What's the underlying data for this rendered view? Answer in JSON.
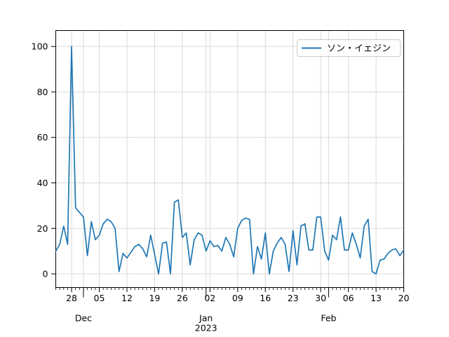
{
  "chart_data": {
    "type": "line",
    "title": "",
    "xlabel": "",
    "ylabel": "",
    "grid": true,
    "legend_position": "upper right",
    "ylim": [
      -6,
      107
    ],
    "yticks": [
      0,
      20,
      40,
      60,
      80,
      100
    ],
    "xticks": [
      {
        "label": "28",
        "index": 4
      },
      {
        "label": "05",
        "index": 11
      },
      {
        "label": "12",
        "index": 18
      },
      {
        "label": "19",
        "index": 25
      },
      {
        "label": "26",
        "index": 32
      },
      {
        "label": "02",
        "index": 39
      },
      {
        "label": "09",
        "index": 46
      },
      {
        "label": "16",
        "index": 53
      },
      {
        "label": "23",
        "index": 60
      },
      {
        "label": "30",
        "index": 67
      },
      {
        "label": "06",
        "index": 74
      },
      {
        "label": "13",
        "index": 81
      },
      {
        "label": "20",
        "index": 88
      }
    ],
    "month_ticks": [
      {
        "label": "Dec",
        "sublabel": "",
        "index": 7
      },
      {
        "label": "Jan",
        "sublabel": "2023",
        "index": 38
      },
      {
        "label": "Feb",
        "sublabel": "",
        "index": 69
      }
    ],
    "dates": [
      "2022-11-24",
      "2022-11-25",
      "2022-11-26",
      "2022-11-27",
      "2022-11-28",
      "2022-11-29",
      "2022-11-30",
      "2022-12-01",
      "2022-12-02",
      "2022-12-03",
      "2022-12-04",
      "2022-12-05",
      "2022-12-06",
      "2022-12-07",
      "2022-12-08",
      "2022-12-09",
      "2022-12-10",
      "2022-12-11",
      "2022-12-12",
      "2022-12-13",
      "2022-12-14",
      "2022-12-15",
      "2022-12-16",
      "2022-12-17",
      "2022-12-18",
      "2022-12-19",
      "2022-12-20",
      "2022-12-21",
      "2022-12-22",
      "2022-12-23",
      "2022-12-24",
      "2022-12-25",
      "2022-12-26",
      "2022-12-27",
      "2022-12-28",
      "2022-12-29",
      "2022-12-30",
      "2022-12-31",
      "2023-01-01",
      "2023-01-02",
      "2023-01-03",
      "2023-01-04",
      "2023-01-05",
      "2023-01-06",
      "2023-01-07",
      "2023-01-08",
      "2023-01-09",
      "2023-01-10",
      "2023-01-11",
      "2023-01-12",
      "2023-01-13",
      "2023-01-14",
      "2023-01-15",
      "2023-01-16",
      "2023-01-17",
      "2023-01-18",
      "2023-01-19",
      "2023-01-20",
      "2023-01-21",
      "2023-01-22",
      "2023-01-23",
      "2023-01-24",
      "2023-01-25",
      "2023-01-26",
      "2023-01-27",
      "2023-01-28",
      "2023-01-29",
      "2023-01-30",
      "2023-01-31",
      "2023-02-01",
      "2023-02-02",
      "2023-02-03",
      "2023-02-04",
      "2023-02-05",
      "2023-02-06",
      "2023-02-07",
      "2023-02-08",
      "2023-02-09",
      "2023-02-10",
      "2023-02-11",
      "2023-02-12",
      "2023-02-13",
      "2023-02-14",
      "2023-02-15",
      "2023-02-16",
      "2023-02-17",
      "2023-02-18",
      "2023-02-19",
      "2023-02-20"
    ],
    "series": [
      {
        "name": "ソン・イェジン",
        "color": "#1f77b4",
        "values": [
          10,
          13,
          21,
          13,
          100,
          29,
          27,
          25,
          8,
          23,
          15,
          17,
          22,
          24,
          23,
          20,
          1,
          9,
          7,
          9.5,
          12,
          13,
          11,
          7.5,
          17,
          8.5,
          0,
          13.5,
          14,
          0,
          31.5,
          32.5,
          16,
          18,
          4,
          15,
          18,
          17,
          10,
          14.5,
          12,
          12.5,
          10,
          16,
          13,
          7.5,
          20,
          23.5,
          24.5,
          24,
          0,
          12,
          6.5,
          18,
          0,
          10,
          13.5,
          16,
          13,
          1,
          19,
          4,
          21,
          22,
          10.5,
          10.5,
          25,
          25,
          10,
          6,
          17,
          15,
          25,
          10.5,
          10.5,
          18,
          13,
          7,
          21,
          24,
          1,
          0,
          6,
          6.5,
          9,
          10.5,
          11,
          8,
          10.5
        ]
      }
    ],
    "colors": {
      "line": "#1f77b4",
      "grid": "#d9d9d9",
      "spine": "#000000",
      "tick_text": "#000000",
      "legend_border": "#cccccc",
      "legend_bg": "#ffffff",
      "background": "#ffffff"
    }
  },
  "legend": {
    "label": "ソン・イェジン"
  }
}
